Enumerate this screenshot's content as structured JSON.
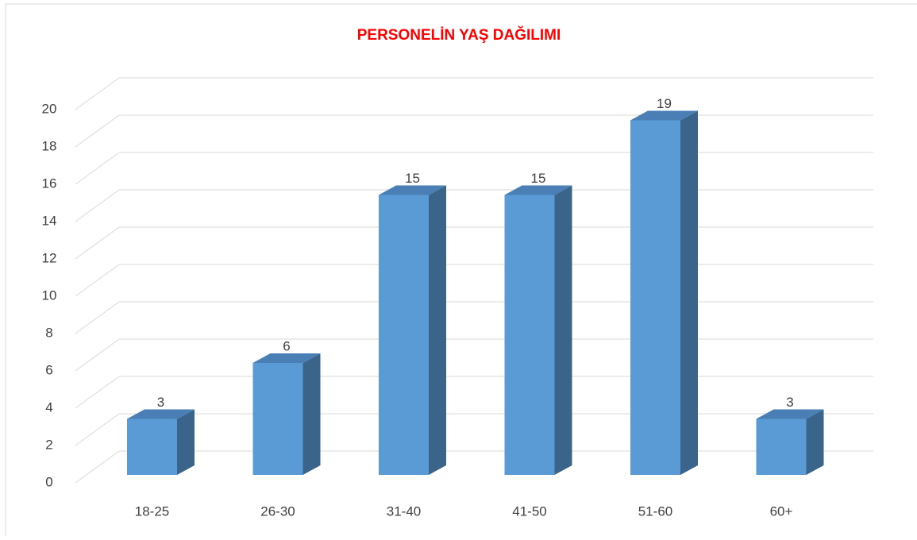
{
  "chart_data": {
    "type": "bar3d",
    "title": "PERSONELİN YAŞ DAĞILIMI",
    "categories": [
      "18-25",
      "26-30",
      "31-40",
      "41-50",
      "51-60",
      "60+"
    ],
    "values": [
      3,
      6,
      15,
      15,
      19,
      3
    ],
    "color": "#5b9bd5",
    "ylim": [
      0,
      20
    ],
    "yticks": [
      0,
      2,
      4,
      6,
      8,
      10,
      12,
      14,
      16,
      18,
      20
    ],
    "grid": true
  }
}
